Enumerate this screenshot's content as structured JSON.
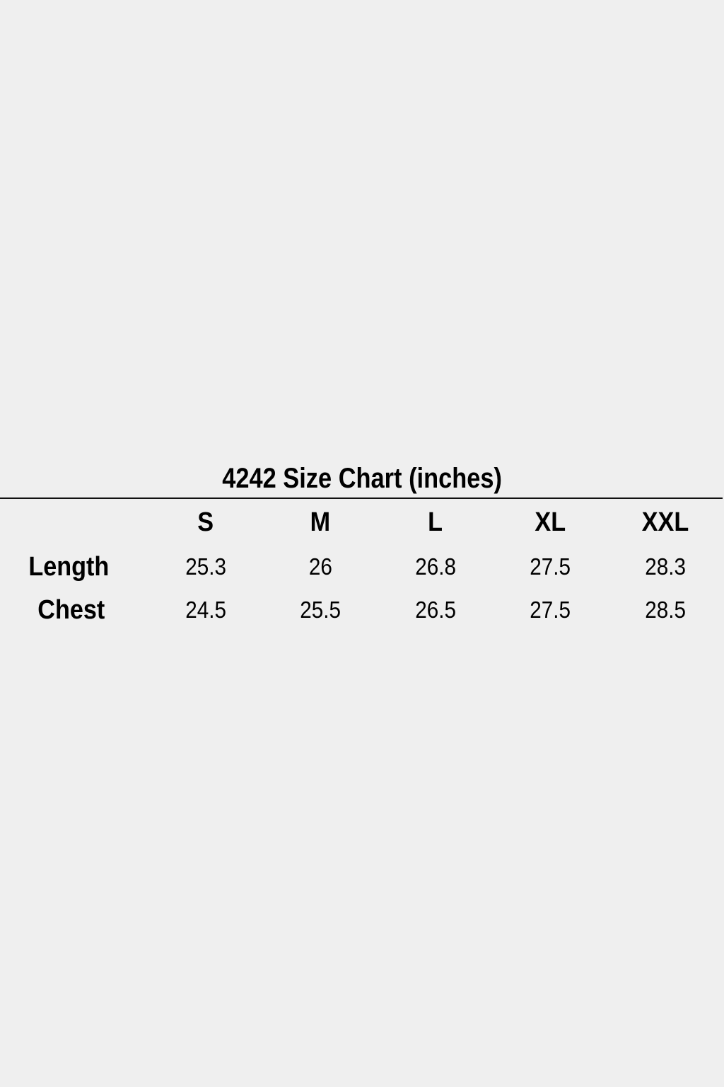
{
  "title": "4242 Size Chart (inches)",
  "table": {
    "columns": [
      "S",
      "M",
      "L",
      "XL",
      "XXL"
    ],
    "rows": [
      {
        "label": "Length",
        "values": [
          "25.3",
          "26",
          "26.8",
          "27.5",
          "28.3"
        ]
      },
      {
        "label": "Chest",
        "values": [
          "24.5",
          "25.5",
          "26.5",
          "27.5",
          "28.5"
        ]
      }
    ]
  }
}
